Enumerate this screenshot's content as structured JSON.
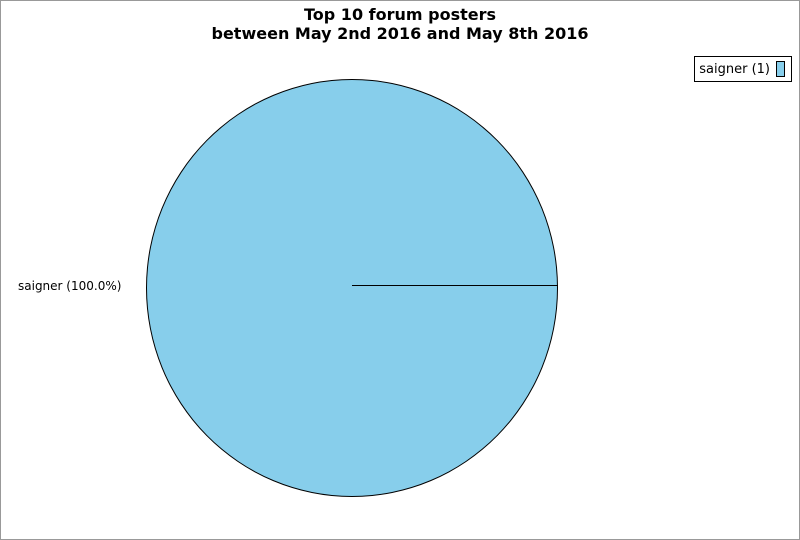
{
  "window": {
    "background_color": "#ffffff",
    "border_color": "#999999"
  },
  "chart_data": {
    "type": "pie",
    "title": "Top 10 forum posters",
    "subtitle": "between May 2nd 2016 and May 8th 2016",
    "slices": [
      {
        "label": "saigner",
        "value": 1,
        "percent": 100.0,
        "display_label": "saigner (100.0%)",
        "color": "#87CEEB",
        "outline_color": "#000000"
      }
    ],
    "legend": {
      "position": "top-right",
      "entries": [
        {
          "label": "saigner (1)",
          "swatch_color": "#87CEEB"
        }
      ]
    },
    "layout_hints": {
      "radius_line_angle_deg": 0,
      "grid": false,
      "background": "#ffffff"
    }
  }
}
